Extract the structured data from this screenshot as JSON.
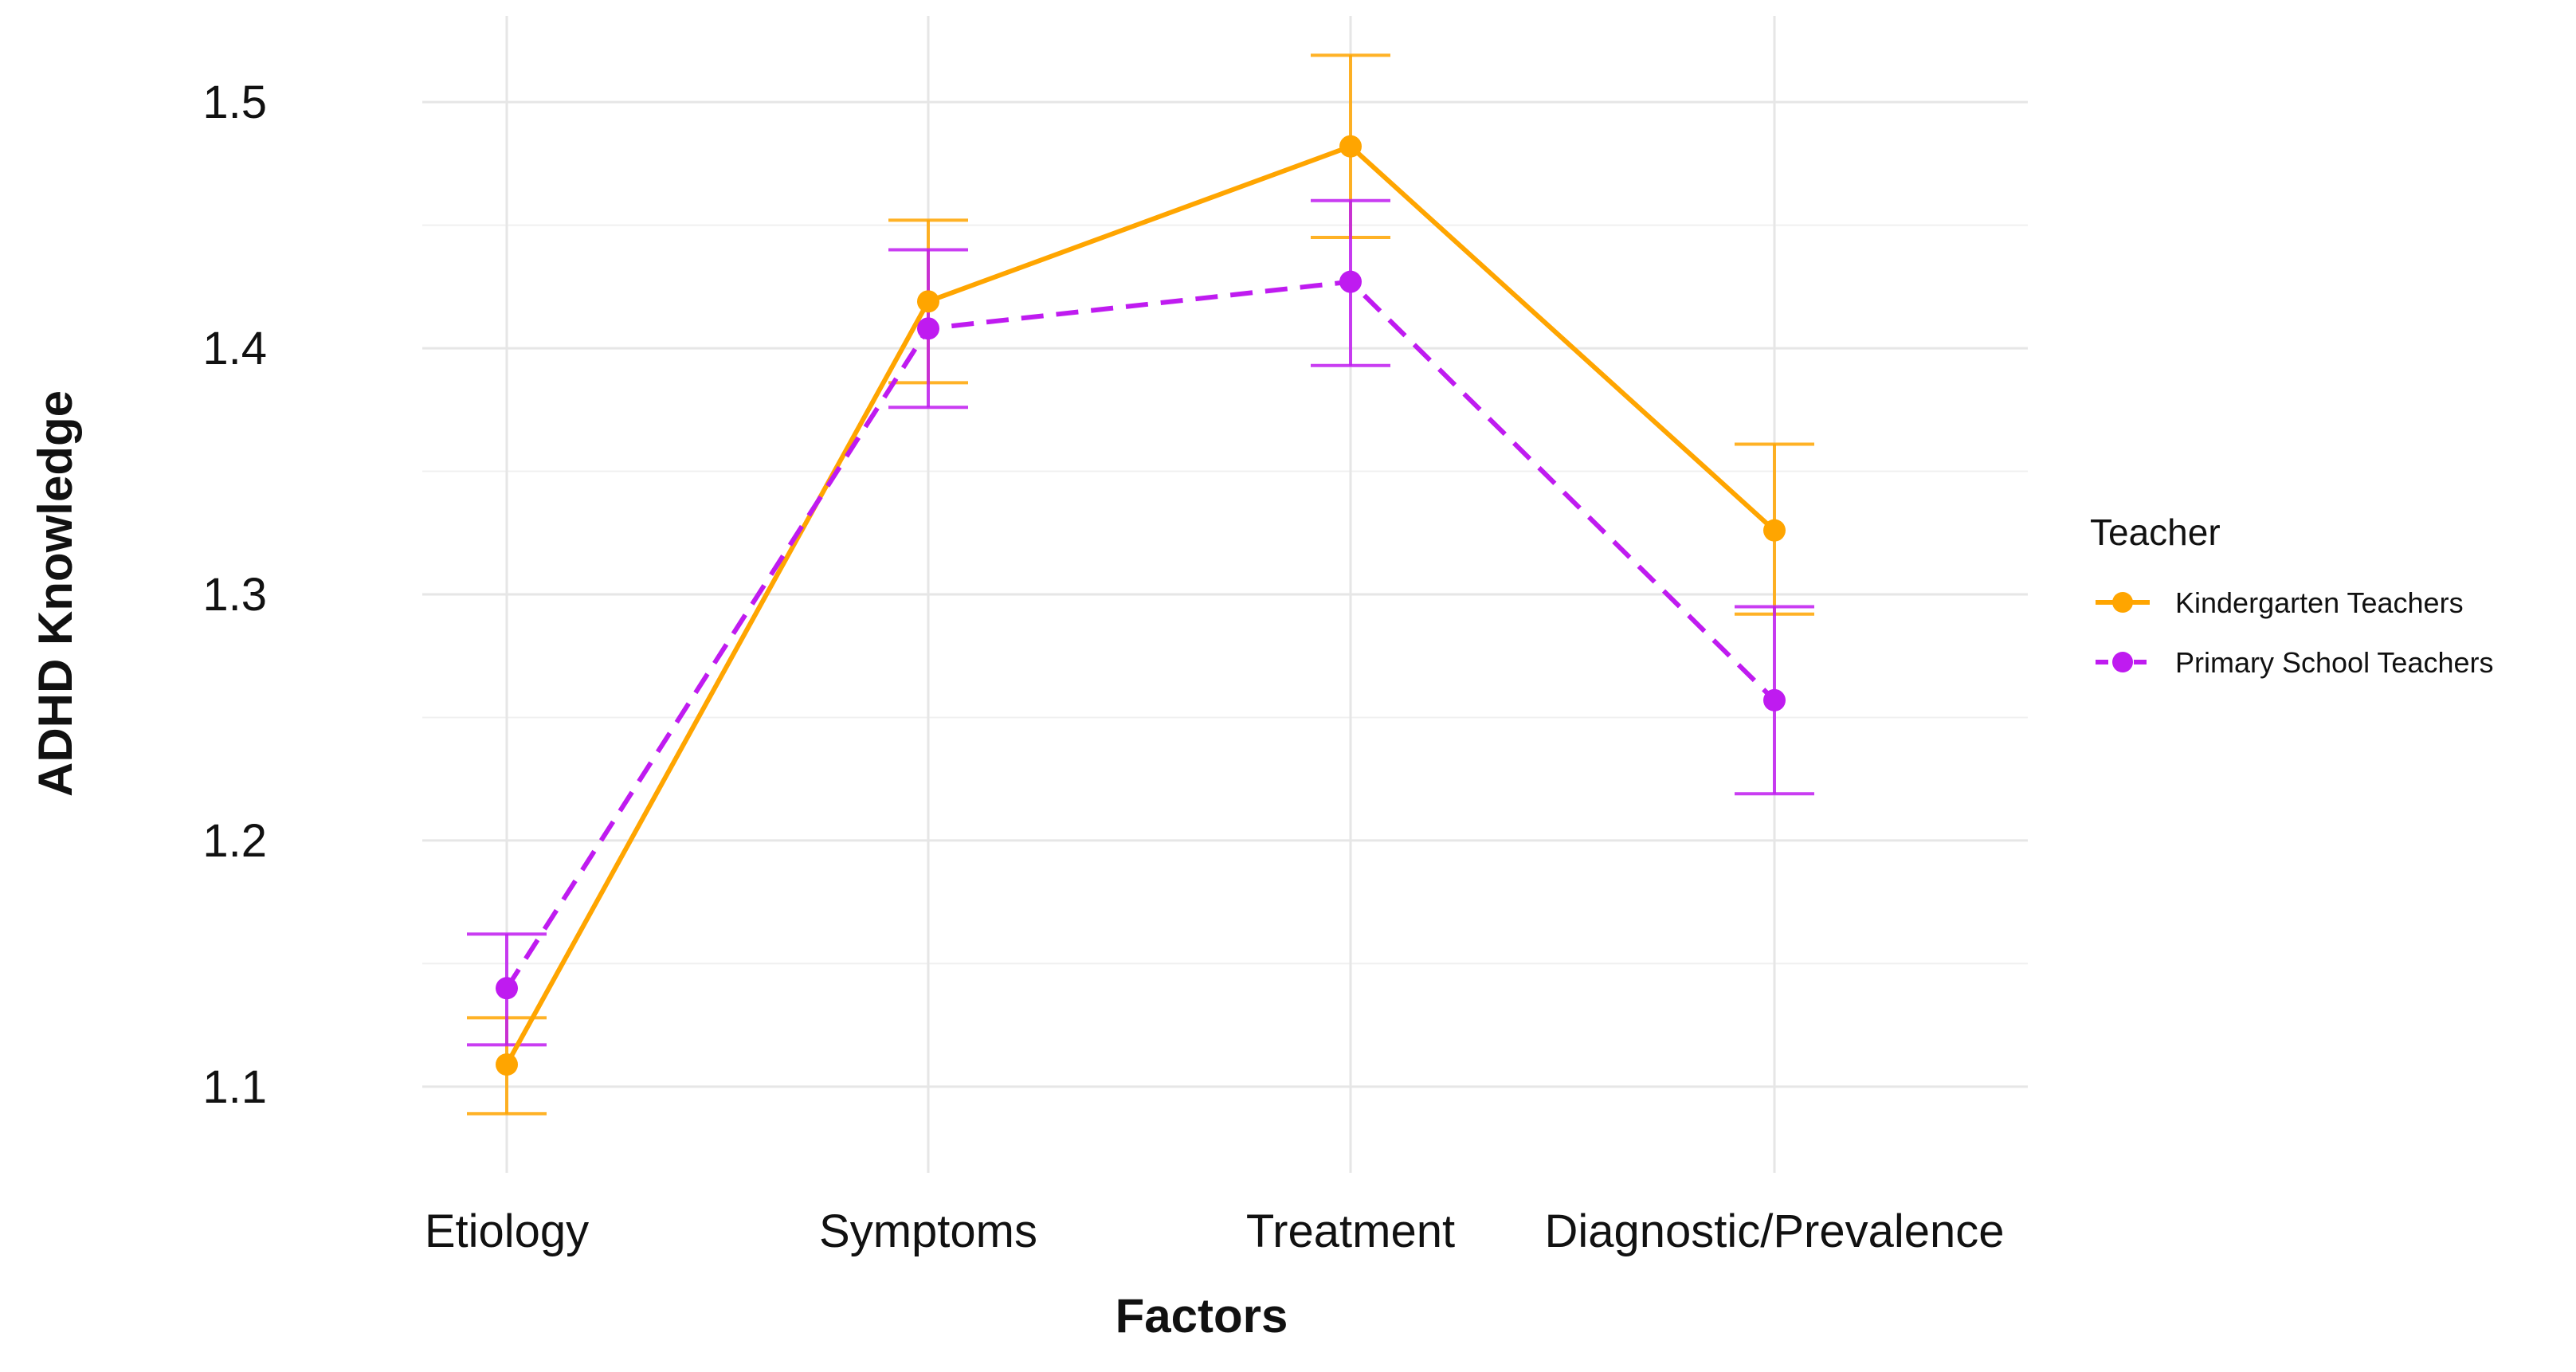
{
  "chart_data": {
    "type": "line",
    "title": "",
    "xlabel": "Factors",
    "ylabel": "ADHD Knowledge",
    "categories": [
      "Etiology",
      "Symptoms",
      "Treatment",
      "Diagnostic/Prevalence"
    ],
    "ylim": [
      1.065,
      1.535
    ],
    "yticks": [
      1.1,
      1.2,
      1.3,
      1.4,
      1.5
    ],
    "ytick_labels": [
      "1.1",
      "1.2",
      "1.3",
      "1.4",
      "1.5"
    ],
    "grid": true,
    "error_bars": true,
    "legend": {
      "title": "Teacher",
      "position": "right"
    },
    "series": [
      {
        "name": "Kindergarten Teachers",
        "color": "#FFA500",
        "linestyle": "solid",
        "values": [
          1.109,
          1.419,
          1.482,
          1.326
        ],
        "lower": [
          1.089,
          1.386,
          1.445,
          1.292
        ],
        "upper": [
          1.128,
          1.452,
          1.519,
          1.361
        ]
      },
      {
        "name": "Primary School Teachers",
        "color": "#BF1BF0",
        "linestyle": "dashed",
        "values": [
          1.14,
          1.408,
          1.427,
          1.257
        ],
        "lower": [
          1.117,
          1.376,
          1.393,
          1.219
        ],
        "upper": [
          1.162,
          1.44,
          1.46,
          1.295
        ]
      }
    ]
  }
}
